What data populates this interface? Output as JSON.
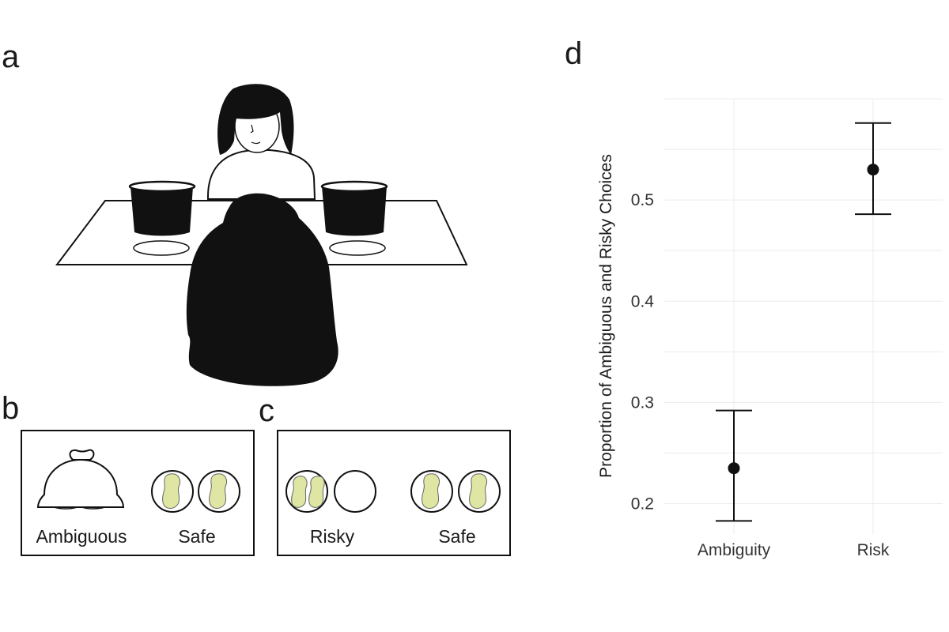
{
  "panels": {
    "a": {
      "letter": "a"
    },
    "b": {
      "letter": "b",
      "left_label": "Ambiguous",
      "right_label": "Safe"
    },
    "c": {
      "letter": "c",
      "left_label": "Risky",
      "right_label": "Safe"
    },
    "d": {
      "letter": "d"
    }
  },
  "colors": {
    "ink": "#111111",
    "peanut": "#dfe6a4",
    "grid": "#ececec"
  },
  "chart_data": {
    "type": "scatter",
    "categories": [
      "Ambiguity",
      "Risk"
    ],
    "values": [
      0.235,
      0.53
    ],
    "error_low": [
      0.183,
      0.486
    ],
    "error_high": [
      0.292,
      0.576
    ],
    "ylabel": "Proportion of Ambiguous and Risky Choices",
    "xlabel": "",
    "yticks": [
      0.2,
      0.3,
      0.4,
      0.5
    ],
    "ylim": [
      0.17,
      0.6
    ],
    "grid": true
  }
}
